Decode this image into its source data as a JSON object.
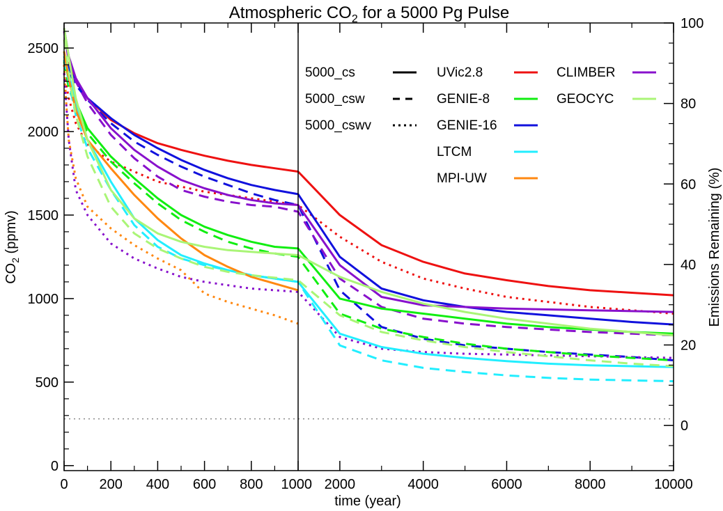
{
  "chart_data": {
    "type": "line",
    "title": "Atmospheric CO",
    "title_sub": "2",
    "title_rest": " for a 5000 Pg Pulse",
    "xlabel": "time (year)",
    "ylabel_pre": "CO",
    "ylabel_sub": "2",
    "ylabel_post": " (ppmv)",
    "y2label": "Emissions Remaining (%)",
    "x_break": 1000,
    "xlim_left": [
      0,
      1000
    ],
    "xlim_right": [
      1000,
      10000
    ],
    "ylim": [
      -30,
      2650
    ],
    "y2lim": [
      -11.22,
      100
    ],
    "x_ticks_left": [
      0,
      200,
      400,
      600,
      800,
      1000
    ],
    "x_ticks_right": [
      2000,
      4000,
      6000,
      8000,
      10000
    ],
    "x_tick_labels_left": [
      "0",
      "200",
      "400",
      "600",
      "800",
      "1000"
    ],
    "x_tick_labels_right": [
      "2000",
      "4000",
      "6000",
      "8000",
      "10000"
    ],
    "y_ticks": [
      0,
      500,
      1000,
      1500,
      2000,
      2500
    ],
    "y_tick_labels": [
      "0",
      "500",
      "1000",
      "1500",
      "2000",
      "2500"
    ],
    "y2_ticks": [
      0,
      20,
      40,
      60,
      80,
      100
    ],
    "y2_tick_labels": [
      "0",
      "20",
      "40",
      "60",
      "80",
      "100"
    ],
    "baseline": 280,
    "colors": {
      "UVic2.8": "#ee1111",
      "GENIE-8": "#11ee11",
      "GENIE-16": "#1111dd",
      "LTCM": "#22eeff",
      "MPI-UW": "#ff8811",
      "CLIMBER": "#8811cc",
      "GEOCYC": "#aaf577"
    },
    "legend_styles": [
      {
        "label": "5000_cs",
        "dash": ""
      },
      {
        "label": "5000_csw",
        "dash": "14,9"
      },
      {
        "label": "5000_cswv",
        "dash": "3,6"
      }
    ],
    "legend_models": [
      "UVic2.8",
      "GENIE-8",
      "GENIE-16",
      "LTCM",
      "MPI-UW",
      "CLIMBER",
      "GEOCYC"
    ],
    "series": [
      {
        "model": "UVic2.8",
        "scenario": "5000_cs",
        "x": [
          0,
          20,
          50,
          100,
          200,
          300,
          400,
          500,
          600,
          700,
          800,
          900,
          1000,
          2000,
          3000,
          4000,
          5000,
          6000,
          7000,
          8000,
          9000,
          10000
        ],
        "y": [
          2450,
          2400,
          2300,
          2200,
          2070,
          1990,
          1930,
          1890,
          1855,
          1825,
          1800,
          1780,
          1760,
          1500,
          1320,
          1220,
          1150,
          1110,
          1075,
          1050,
          1035,
          1020
        ]
      },
      {
        "model": "UVic2.8",
        "scenario": "5000_cswv",
        "x": [
          0,
          20,
          50,
          100,
          200,
          300,
          400,
          500,
          600,
          700,
          800,
          900,
          1000,
          2000,
          3000,
          4000,
          5000,
          6000,
          7000,
          8000,
          9000,
          10000
        ],
        "y": [
          2350,
          2200,
          2050,
          1920,
          1820,
          1760,
          1700,
          1670,
          1640,
          1620,
          1600,
          1580,
          1560,
          1370,
          1220,
          1120,
          1060,
          1010,
          980,
          950,
          930,
          910
        ]
      },
      {
        "model": "GENIE-16",
        "scenario": "5000_cs",
        "x": [
          0,
          20,
          50,
          100,
          200,
          300,
          400,
          500,
          600,
          700,
          800,
          900,
          1000,
          2000,
          3000,
          4000,
          5000,
          6000,
          7000,
          8000,
          9000,
          10000
        ],
        "y": [
          2450,
          2380,
          2300,
          2200,
          2080,
          1980,
          1900,
          1830,
          1770,
          1720,
          1680,
          1650,
          1625,
          1250,
          1060,
          990,
          950,
          920,
          900,
          880,
          860,
          845
        ]
      },
      {
        "model": "GENIE-16",
        "scenario": "5000_csw",
        "x": [
          0,
          20,
          50,
          100,
          200,
          300,
          400,
          500,
          600,
          700,
          800,
          900,
          1000,
          2000,
          3000,
          4000,
          5000,
          6000,
          7000,
          8000,
          9000,
          10000
        ],
        "y": [
          2430,
          2360,
          2280,
          2190,
          2050,
          1940,
          1860,
          1790,
          1730,
          1680,
          1630,
          1590,
          1560,
          1050,
          830,
          760,
          720,
          700,
          680,
          665,
          650,
          630
        ]
      },
      {
        "model": "CLIMBER",
        "scenario": "5000_cs",
        "x": [
          0,
          20,
          50,
          100,
          200,
          300,
          400,
          500,
          600,
          700,
          800,
          900,
          1000,
          2000,
          3000,
          4000,
          5000,
          6000,
          7000,
          8000,
          9000,
          10000
        ],
        "y": [
          2620,
          2450,
          2320,
          2200,
          2020,
          1890,
          1790,
          1710,
          1660,
          1620,
          1590,
          1570,
          1560,
          1200,
          1010,
          960,
          950,
          940,
          935,
          930,
          925,
          920
        ]
      },
      {
        "model": "CLIMBER",
        "scenario": "5000_csw",
        "x": [
          0,
          20,
          50,
          100,
          200,
          300,
          400,
          500,
          600,
          700,
          800,
          900,
          1000,
          2000,
          3000,
          4000,
          5000,
          6000,
          7000,
          8000,
          9000,
          10000
        ],
        "y": [
          2600,
          2420,
          2300,
          2170,
          1980,
          1840,
          1730,
          1650,
          1610,
          1580,
          1560,
          1550,
          1520,
          1120,
          950,
          880,
          850,
          830,
          815,
          800,
          790,
          780
        ]
      },
      {
        "model": "CLIMBER",
        "scenario": "5000_cswv",
        "x": [
          0,
          20,
          50,
          100,
          200,
          300,
          400,
          500,
          600,
          700,
          800,
          900,
          1000,
          2000,
          3000,
          4000,
          5000,
          6000,
          7000,
          8000,
          9000,
          10000
        ],
        "y": [
          2350,
          1950,
          1650,
          1500,
          1330,
          1240,
          1180,
          1130,
          1100,
          1080,
          1060,
          1050,
          1040,
          770,
          700,
          680,
          670,
          665,
          660,
          655,
          650,
          645
        ]
      },
      {
        "model": "GENIE-8",
        "scenario": "5000_cs",
        "x": [
          0,
          20,
          50,
          100,
          200,
          300,
          400,
          500,
          600,
          700,
          800,
          900,
          1000,
          2000,
          3000,
          4000,
          5000,
          6000,
          7000,
          8000,
          9000,
          10000
        ],
        "y": [
          2480,
          2300,
          2180,
          2020,
          1850,
          1720,
          1600,
          1500,
          1430,
          1380,
          1340,
          1310,
          1300,
          1000,
          940,
          910,
          880,
          850,
          830,
          815,
          800,
          790
        ]
      },
      {
        "model": "GENIE-8",
        "scenario": "5000_csw",
        "x": [
          0,
          20,
          50,
          100,
          200,
          300,
          400,
          500,
          600,
          700,
          800,
          900,
          1000,
          2000,
          3000,
          4000,
          5000,
          6000,
          7000,
          8000,
          9000,
          10000
        ],
        "y": [
          2420,
          2260,
          2150,
          1990,
          1820,
          1690,
          1570,
          1470,
          1400,
          1340,
          1300,
          1270,
          1250,
          910,
          820,
          770,
          730,
          700,
          680,
          660,
          645,
          630
        ]
      },
      {
        "model": "LTCM",
        "scenario": "5000_cs",
        "x": [
          0,
          20,
          50,
          100,
          200,
          300,
          400,
          500,
          600,
          700,
          800,
          900,
          1000,
          2000,
          3000,
          4000,
          5000,
          6000,
          7000,
          8000,
          9000,
          10000
        ],
        "y": [
          2450,
          2350,
          2150,
          1950,
          1700,
          1480,
          1350,
          1260,
          1210,
          1170,
          1140,
          1120,
          1100,
          790,
          710,
          670,
          645,
          625,
          610,
          600,
          595,
          590
        ]
      },
      {
        "model": "LTCM",
        "scenario": "5000_csw",
        "x": [
          0,
          20,
          50,
          100,
          200,
          300,
          400,
          500,
          600,
          700,
          800,
          900,
          1000,
          2000,
          3000,
          4000,
          5000,
          6000,
          7000,
          8000,
          9000,
          10000
        ],
        "y": [
          2430,
          2300,
          2100,
          1900,
          1650,
          1440,
          1310,
          1240,
          1200,
          1170,
          1140,
          1120,
          1100,
          720,
          630,
          585,
          560,
          540,
          525,
          515,
          510,
          505
        ]
      },
      {
        "model": "MPI-UW",
        "scenario": "5000_cs",
        "x": [
          0,
          20,
          50,
          100,
          200,
          300,
          400,
          500,
          600,
          700,
          800,
          900,
          1000
        ],
        "y": [
          2480,
          2320,
          2130,
          1950,
          1780,
          1620,
          1480,
          1360,
          1260,
          1190,
          1130,
          1090,
          1050
        ]
      },
      {
        "model": "MPI-UW",
        "scenario": "5000_cswv",
        "x": [
          0,
          10,
          20,
          50,
          100,
          200,
          300,
          400,
          500,
          550,
          600,
          700,
          800,
          900,
          1000
        ],
        "y": [
          2400,
          2150,
          1950,
          1720,
          1550,
          1420,
          1320,
          1240,
          1170,
          1100,
          1030,
          980,
          940,
          900,
          850
        ]
      },
      {
        "model": "GEOCYC",
        "scenario": "5000_cs",
        "x": [
          0,
          20,
          50,
          100,
          200,
          300,
          400,
          500,
          600,
          700,
          800,
          900,
          1000,
          2000,
          3000,
          4000,
          5000,
          6000,
          7000,
          8000,
          9000,
          10000
        ],
        "y": [
          2620,
          2450,
          2200,
          1950,
          1650,
          1480,
          1390,
          1340,
          1310,
          1290,
          1280,
          1270,
          1260,
          1130,
          1040,
          970,
          920,
          880,
          850,
          820,
          800,
          780
        ]
      },
      {
        "model": "GEOCYC",
        "scenario": "5000_csw",
        "x": [
          0,
          20,
          50,
          100,
          200,
          300,
          400,
          500,
          600,
          700,
          800,
          900,
          1000,
          2000,
          3000,
          4000,
          5000,
          6000,
          7000,
          8000,
          9000,
          10000
        ],
        "y": [
          2550,
          2350,
          2100,
          1850,
          1550,
          1390,
          1300,
          1240,
          1190,
          1160,
          1140,
          1125,
          1110,
          900,
          800,
          750,
          710,
          680,
          655,
          630,
          610,
          595
        ]
      }
    ]
  }
}
